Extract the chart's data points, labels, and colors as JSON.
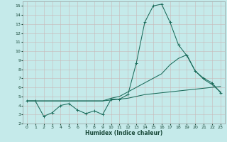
{
  "xlabel": "Humidex (Indice chaleur)",
  "bg_color": "#c5eaea",
  "grid_color": "#c8b8b8",
  "line_color": "#1a6b5a",
  "xlim": [
    -0.5,
    23.5
  ],
  "ylim": [
    2,
    15.5
  ],
  "xticks": [
    0,
    1,
    2,
    3,
    4,
    5,
    6,
    7,
    8,
    9,
    10,
    11,
    12,
    13,
    14,
    15,
    16,
    17,
    18,
    19,
    20,
    21,
    22,
    23
  ],
  "yticks": [
    2,
    3,
    4,
    5,
    6,
    7,
    8,
    9,
    10,
    11,
    12,
    13,
    14,
    15
  ],
  "line1_x": [
    0,
    1,
    2,
    3,
    4,
    5,
    6,
    7,
    8,
    9,
    10,
    11,
    12,
    13,
    14,
    15,
    16,
    17,
    18,
    19,
    20,
    21,
    22,
    23
  ],
  "line1_y": [
    4.5,
    4.5,
    2.8,
    3.2,
    4.0,
    4.2,
    3.5,
    3.1,
    3.4,
    3.0,
    4.7,
    4.7,
    5.2,
    8.7,
    13.2,
    15.0,
    15.2,
    13.2,
    10.7,
    9.5,
    7.8,
    7.0,
    6.5,
    5.4
  ],
  "line2_x": [
    0,
    1,
    2,
    3,
    4,
    5,
    6,
    7,
    8,
    9,
    10,
    11,
    12,
    13,
    14,
    15,
    16,
    17,
    18,
    19,
    20,
    21,
    22,
    23
  ],
  "line2_y": [
    4.5,
    4.5,
    4.5,
    4.5,
    4.5,
    4.5,
    4.5,
    4.5,
    4.5,
    4.5,
    4.6,
    4.7,
    4.8,
    5.0,
    5.2,
    5.3,
    5.4,
    5.5,
    5.6,
    5.7,
    5.8,
    5.9,
    6.0,
    6.1
  ],
  "line3_x": [
    0,
    1,
    2,
    3,
    4,
    5,
    6,
    7,
    8,
    9,
    10,
    11,
    12,
    13,
    14,
    15,
    16,
    17,
    18,
    19,
    20,
    21,
    22,
    23
  ],
  "line3_y": [
    4.5,
    4.5,
    4.5,
    4.5,
    4.5,
    4.5,
    4.5,
    4.5,
    4.5,
    4.5,
    4.8,
    5.0,
    5.5,
    6.0,
    6.5,
    7.0,
    7.5,
    8.5,
    9.2,
    9.6,
    7.8,
    6.9,
    6.3,
    5.5
  ]
}
